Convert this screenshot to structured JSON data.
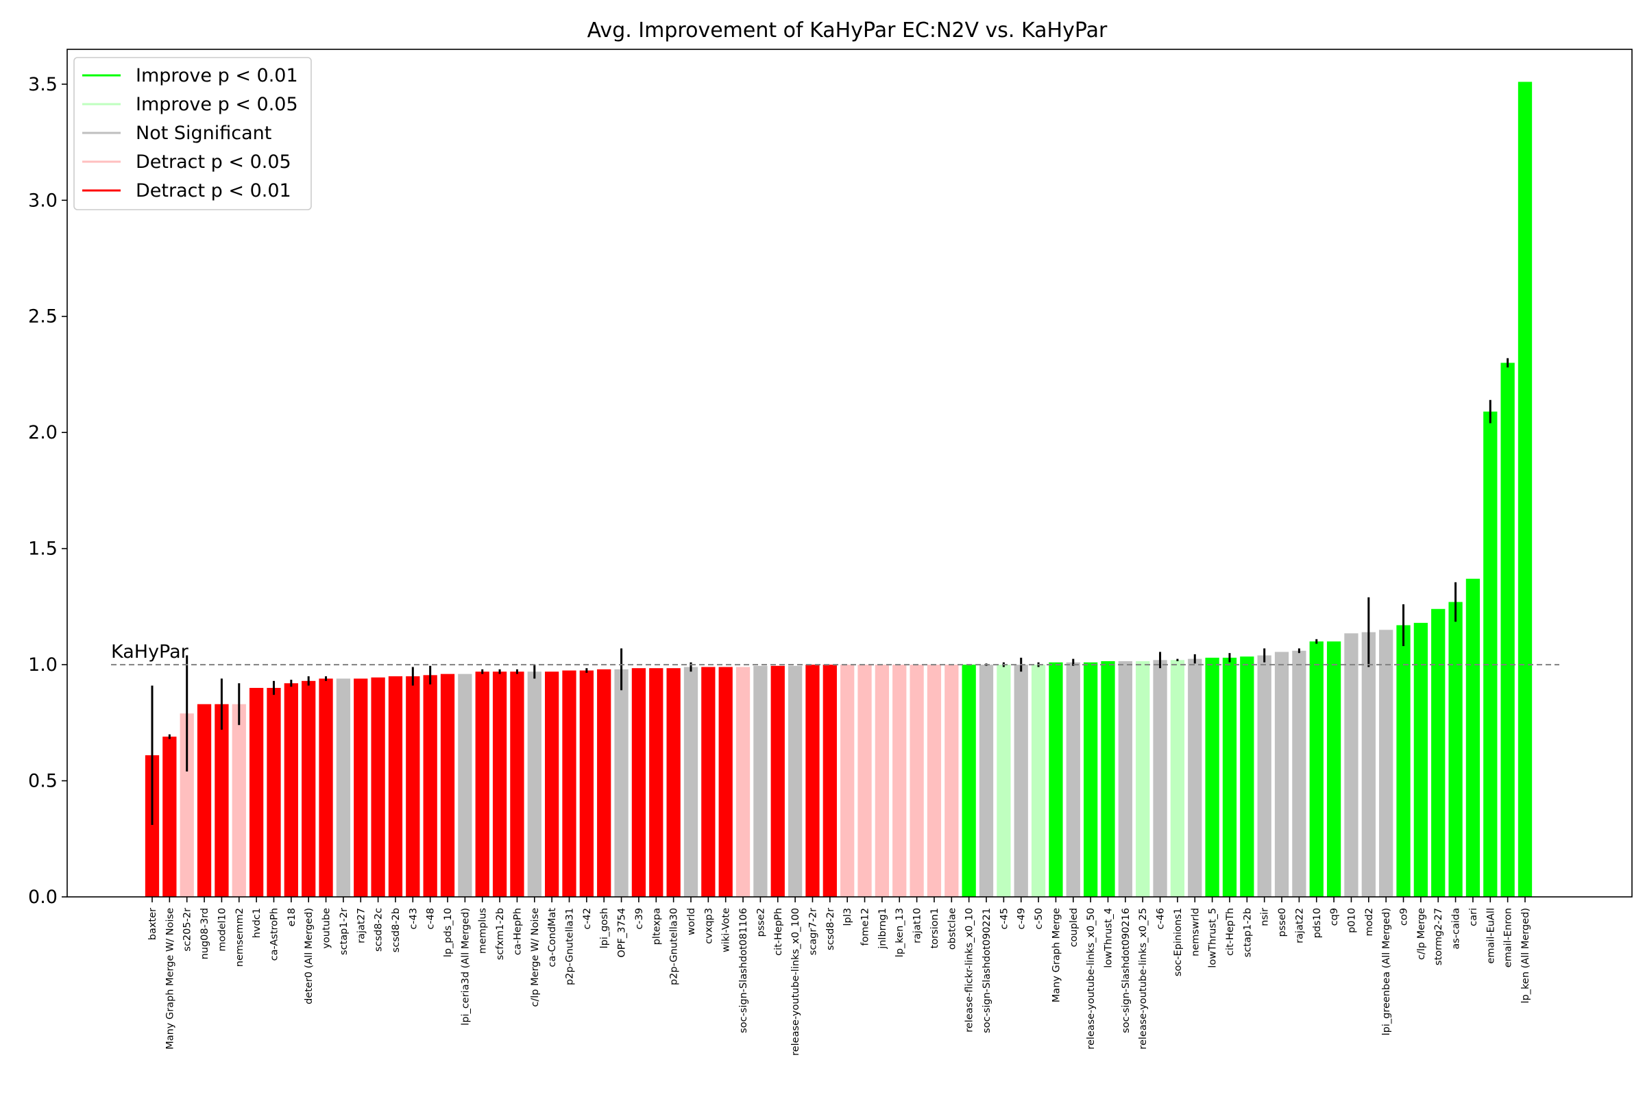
{
  "chart_data": {
    "type": "bar",
    "title": "Avg. Improvement of KaHyPar EC:N2V vs. KaHyPar",
    "xlabel": "",
    "ylabel": "",
    "ylim": [
      0,
      3.65
    ],
    "yticks": [
      "0.0",
      "0.5",
      "1.0",
      "1.5",
      "2.0",
      "2.5",
      "3.0",
      "3.5"
    ],
    "reference_line": {
      "value": 1.0,
      "label": "KaHyPar",
      "style": "dashed"
    },
    "legend": {
      "placement": "top-left",
      "entries": [
        {
          "label": "Improve p < 0.01",
          "color": "#00ff00"
        },
        {
          "label": "Improve p < 0.05",
          "color": "#bfffbf"
        },
        {
          "label": "Not Significant",
          "color": "#bfbfbf"
        },
        {
          "label": "Detract p < 0.05",
          "color": "#ffbfbf"
        },
        {
          "label": "Detract p < 0.01",
          "color": "#ff0000"
        }
      ]
    },
    "categories": [
      "baxter",
      "Many Graph Merge W/ Noise",
      "sc205-2r",
      "nug08-3rd",
      "model10",
      "nemsemm2",
      "hvdc1",
      "ca-AstroPh",
      "e18",
      "deter0 (All Merged)",
      "youtube",
      "sctap1-2r",
      "rajat27",
      "scsd8-2c",
      "scsd8-2b",
      "c-43",
      "c-48",
      "lp_pds_10",
      "lpi_ceria3d (All Merged)",
      "memplus",
      "scfxm1-2b",
      "ca-HepPh",
      "c/lp Merge W/ Noise",
      "ca-CondMat",
      "p2p-Gnutella31",
      "c-42",
      "lpi_gosh",
      "OPF_3754",
      "c-39",
      "pltexpa",
      "p2p-Gnutella30",
      "world",
      "cvxqp3",
      "wiki-Vote",
      "soc-sign-Slashdot081106",
      "psse2",
      "cit-HepPh",
      "release-youtube-links_x0_100",
      "scagr7-2r",
      "scsd8-2r",
      "lpl3",
      "fome12",
      "jnlbrng1",
      "lp_ken_13",
      "rajat10",
      "torsion1",
      "obstclae",
      "release-flickr-links_x0_10",
      "soc-sign-Slashdot090221",
      "c-45",
      "c-49",
      "c-50",
      "Many Graph Merge",
      "coupled",
      "release-youtube-links_x0_50",
      "lowThrust_4",
      "soc-sign-Slashdot090216",
      "release-youtube-links_x0_25",
      "c-46",
      "soc-Epinions1",
      "nemswrld",
      "lowThrust_5",
      "cit-HepTh",
      "sctap1-2b",
      "nsir",
      "psse0",
      "rajat22",
      "pds10",
      "cq9",
      "p010",
      "mod2",
      "lpi_greenbea (All Merged)",
      "co9",
      "c/lp Merge",
      "stormg2-27",
      "as-caida",
      "cari",
      "email-EuAll",
      "email-Enron",
      "lp_ken (All Merged)"
    ],
    "values": [
      0.61,
      0.69,
      0.79,
      0.83,
      0.83,
      0.83,
      0.9,
      0.9,
      0.92,
      0.93,
      0.94,
      0.94,
      0.94,
      0.945,
      0.95,
      0.95,
      0.955,
      0.96,
      0.96,
      0.97,
      0.97,
      0.97,
      0.97,
      0.97,
      0.975,
      0.975,
      0.98,
      0.98,
      0.985,
      0.985,
      0.985,
      0.99,
      0.99,
      0.99,
      0.99,
      0.995,
      0.995,
      0.995,
      1.0,
      1.0,
      1.0,
      1.0,
      1.0,
      1.0,
      1.0,
      1.0,
      1.0,
      1.0,
      1.0,
      1.0,
      1.0,
      1.0,
      1.01,
      1.01,
      1.01,
      1.015,
      1.015,
      1.015,
      1.02,
      1.02,
      1.025,
      1.03,
      1.03,
      1.035,
      1.04,
      1.055,
      1.06,
      1.1,
      1.1,
      1.135,
      1.14,
      1.15,
      1.17,
      1.18,
      1.24,
      1.27,
      1.37,
      2.09,
      2.3,
      3.51
    ],
    "errors": [
      0.3,
      0.01,
      0.25,
      0.0,
      0.11,
      0.09,
      0.0,
      0.03,
      0.015,
      0.02,
      0.01,
      0.0,
      0.0,
      0.0,
      0.0,
      0.04,
      0.04,
      0.0,
      0.0,
      0.01,
      0.01,
      0.01,
      0.03,
      0.0,
      0.0,
      0.01,
      0.0,
      0.09,
      0.0,
      0.0,
      0.0,
      0.02,
      0.0,
      0.0,
      0.0,
      0.0,
      0.0,
      0.0,
      0.0,
      0.0,
      0.0,
      0.0,
      0.0,
      0.0,
      0.0,
      0.0,
      0.0,
      0.0,
      0.005,
      0.01,
      0.03,
      0.01,
      0.0,
      0.015,
      0.0,
      0.0,
      0.0,
      0.0,
      0.035,
      0.005,
      0.02,
      0.0,
      0.02,
      0.0,
      0.03,
      0.0,
      0.01,
      0.01,
      0.0,
      0.0,
      0.15,
      0.0,
      0.09,
      0.0,
      0.0,
      0.085,
      0.0,
      0.05,
      0.02,
      0.0
    ],
    "significance": [
      "D01",
      "D01",
      "D05",
      "D01",
      "D01",
      "D05",
      "D01",
      "D01",
      "D01",
      "D01",
      "D01",
      "NS",
      "D01",
      "D01",
      "D01",
      "D01",
      "D01",
      "D01",
      "NS",
      "D01",
      "D01",
      "D01",
      "NS",
      "D01",
      "D01",
      "D01",
      "D01",
      "NS",
      "D01",
      "D01",
      "D01",
      "NS",
      "D01",
      "D01",
      "D05",
      "NS",
      "D01",
      "NS",
      "D01",
      "D01",
      "D05",
      "D05",
      "D05",
      "D05",
      "D05",
      "D05",
      "D05",
      "I01",
      "NS",
      "I05",
      "NS",
      "I05",
      "I01",
      "NS",
      "I01",
      "I01",
      "NS",
      "I05",
      "NS",
      "I05",
      "NS",
      "I01",
      "I01",
      "I01",
      "NS",
      "NS",
      "NS",
      "I01",
      "I01",
      "NS",
      "NS",
      "NS",
      "I01",
      "I01",
      "I01",
      "I01",
      "I01",
      "I01",
      "I01",
      "I01"
    ],
    "colors": {
      "I01": "#00ff00",
      "I05": "#bfffbf",
      "NS": "#bfbfbf",
      "D05": "#ffbfbf",
      "D01": "#ff0000",
      "errorbar": "#000000",
      "reference_line": "#808080"
    },
    "grid": false
  }
}
